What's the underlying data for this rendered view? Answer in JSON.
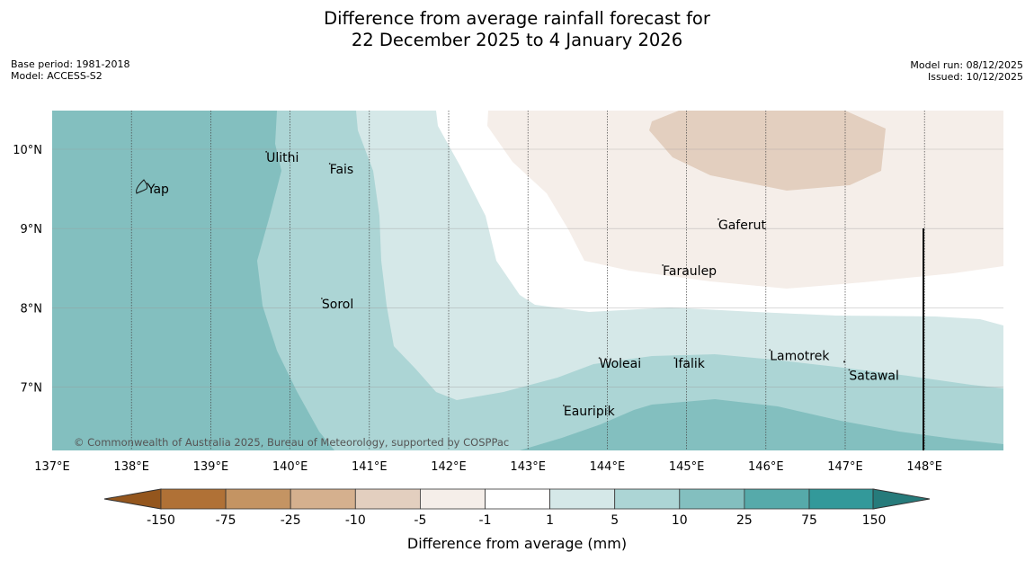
{
  "header": {
    "title_line1": "Difference from average rainfall forecast for",
    "title_line2": "22 December 2025 to 4 January 2026",
    "base_period": "Base period: 1981-2018",
    "model": "Model: ACCESS-S2",
    "model_run": "Model run: 08/12/2025",
    "issued": "Issued: 10/12/2025"
  },
  "map": {
    "longitude_ticks": [
      "137°E",
      "138°E",
      "139°E",
      "140°E",
      "141°E",
      "142°E",
      "143°E",
      "144°E",
      "145°E",
      "146°E",
      "147°E",
      "148°E"
    ],
    "latitude_ticks": [
      "10°N",
      "9°N",
      "8°N",
      "7°N"
    ],
    "places": [
      {
        "name": "Yap",
        "lon": 138.2,
        "lat": 9.5
      },
      {
        "name": "Ulithi",
        "lon": 139.7,
        "lat": 9.9
      },
      {
        "name": "Fais",
        "lon": 140.5,
        "lat": 9.75
      },
      {
        "name": "Gaferut",
        "lon": 145.4,
        "lat": 9.05
      },
      {
        "name": "Faraulep",
        "lon": 144.7,
        "lat": 8.47
      },
      {
        "name": "Sorol",
        "lon": 140.4,
        "lat": 8.05
      },
      {
        "name": "Woleai",
        "lon": 143.9,
        "lat": 7.3
      },
      {
        "name": "Ifalik",
        "lon": 144.85,
        "lat": 7.3
      },
      {
        "name": "Lamotrek",
        "lon": 146.05,
        "lat": 7.4
      },
      {
        "name": "Satawal",
        "lon": 147.05,
        "lat": 7.15
      },
      {
        "name": "Eauripik",
        "lon": 143.45,
        "lat": 6.7
      }
    ],
    "copyright": "© Commonwealth of Australia 2025, Bureau of Meteorology, supported by COSPPac"
  },
  "colorbar": {
    "labels": [
      "-150",
      "-75",
      "-25",
      "-10",
      "-5",
      "-1",
      "1",
      "5",
      "10",
      "25",
      "75",
      "150"
    ],
    "colors": [
      "#b07136",
      "#c49463",
      "#d5b08e",
      "#e3cfbf",
      "#f5eee9",
      "#ffffff",
      "#d5e8e8",
      "#acd5d5",
      "#83bfbf",
      "#56aaaa",
      "#33999a"
    ],
    "low_extend_color": "#94561d",
    "high_extend_color": "#267b7b",
    "title": "Difference from average (mm)"
  }
}
